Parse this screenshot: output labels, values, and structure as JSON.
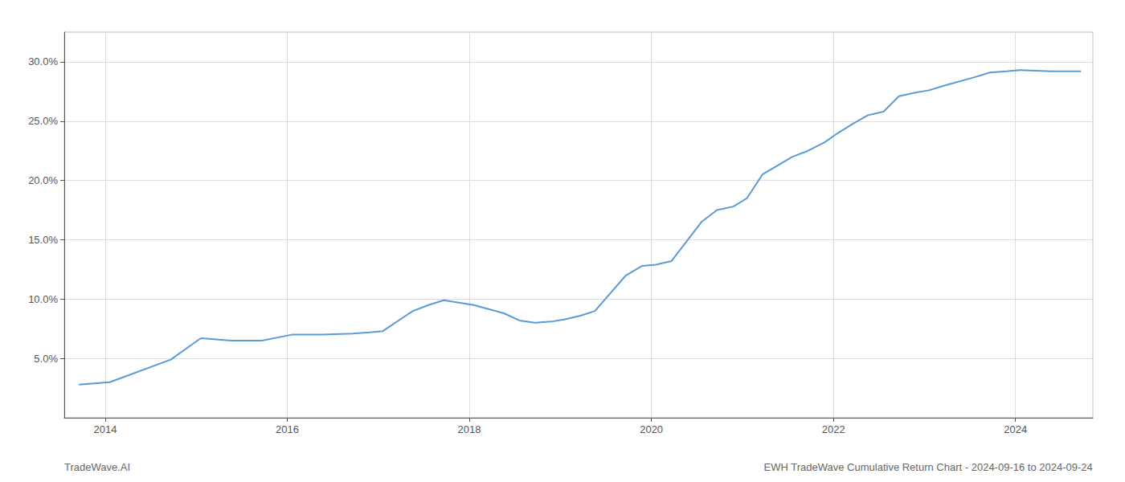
{
  "chart_data": {
    "type": "line",
    "x": [
      2013.71,
      2014.05,
      2014.72,
      2015.05,
      2015.38,
      2015.72,
      2016.05,
      2016.38,
      2016.72,
      2016.9,
      2017.05,
      2017.38,
      2017.55,
      2017.72,
      2018.05,
      2018.38,
      2018.55,
      2018.72,
      2018.9,
      2019.05,
      2019.22,
      2019.38,
      2019.55,
      2019.72,
      2019.9,
      2020.05,
      2020.22,
      2020.55,
      2020.72,
      2020.9,
      2021.05,
      2021.22,
      2021.55,
      2021.72,
      2021.9,
      2022.05,
      2022.22,
      2022.38,
      2022.55,
      2022.72,
      2022.9,
      2023.05,
      2023.22,
      2023.55,
      2023.72,
      2023.9,
      2024.05,
      2024.38,
      2024.72
    ],
    "values": [
      2.8,
      3.0,
      4.9,
      6.7,
      6.5,
      6.5,
      7.0,
      7.0,
      7.1,
      7.2,
      7.3,
      9.0,
      9.5,
      9.9,
      9.5,
      8.8,
      8.2,
      8.0,
      8.1,
      8.3,
      8.6,
      9.0,
      10.5,
      12.0,
      12.8,
      12.9,
      13.2,
      16.5,
      17.5,
      17.8,
      18.5,
      20.5,
      22.0,
      22.5,
      23.2,
      24.0,
      24.8,
      25.5,
      25.8,
      27.1,
      27.4,
      27.6,
      28.0,
      28.7,
      29.1,
      29.2,
      29.3,
      29.2,
      29.2
    ],
    "color": "#5b9bd5",
    "xlim": [
      2013.55,
      2024.85
    ],
    "ylim": [
      0.0,
      32.5
    ],
    "xticks": [
      2014,
      2016,
      2018,
      2020,
      2022,
      2024
    ],
    "yticks": [
      {
        "value": 5.0,
        "label": "5.0%"
      },
      {
        "value": 10.0,
        "label": "10.0%"
      },
      {
        "value": 15.0,
        "label": "15.0%"
      },
      {
        "value": 20.0,
        "label": "20.0%"
      },
      {
        "value": 25.0,
        "label": "25.0%"
      },
      {
        "value": 30.0,
        "label": "30.0%"
      }
    ],
    "grid": true,
    "annotations": [
      "TradeWave.AI",
      "EWH TradeWave Cumulative Return Chart - 2024-09-16 to 2024-09-24"
    ]
  }
}
